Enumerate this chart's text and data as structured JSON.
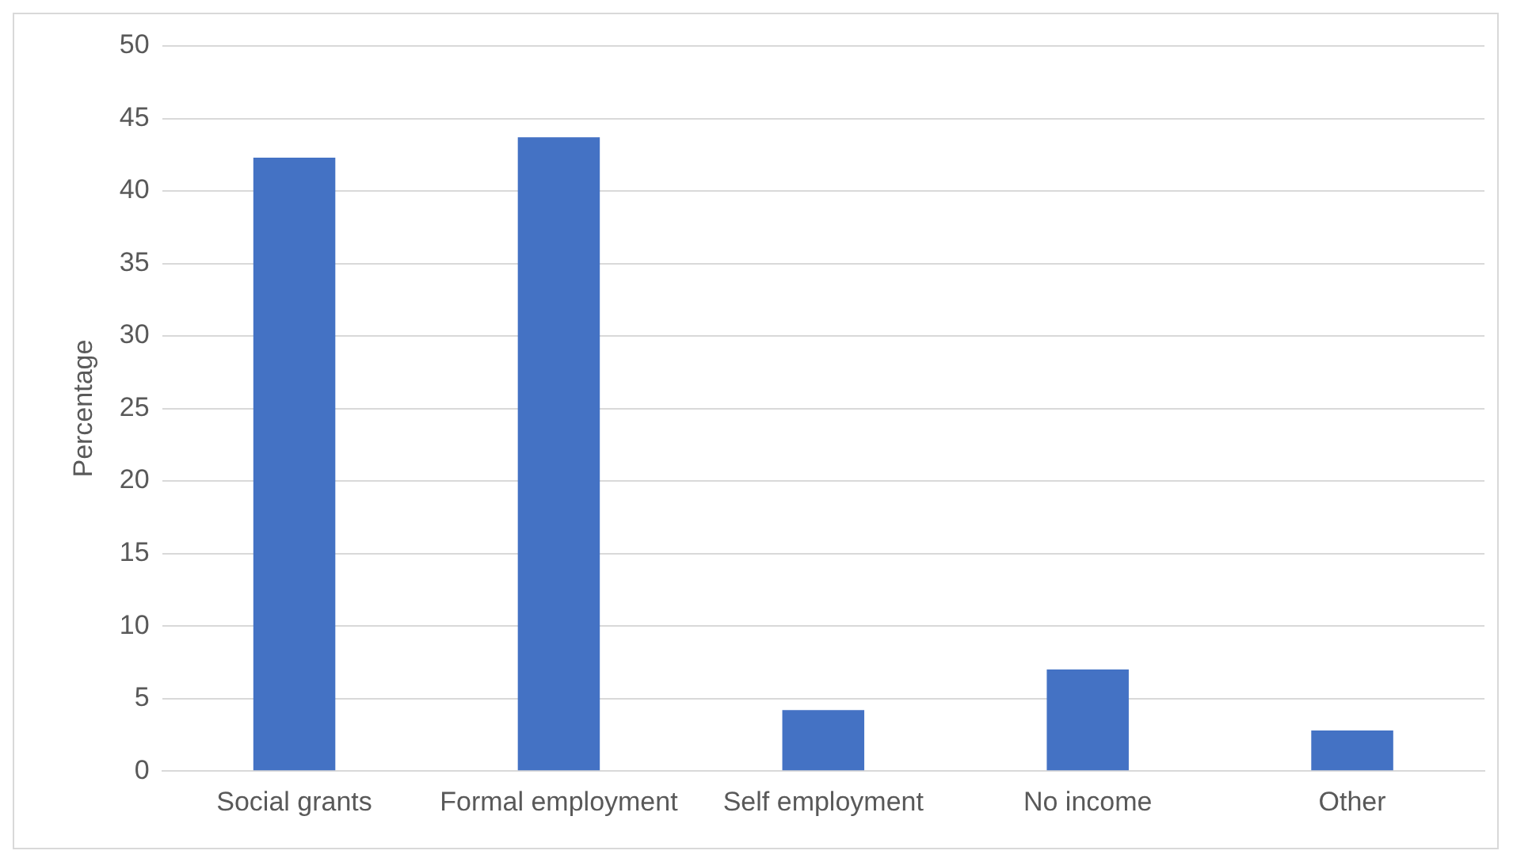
{
  "chart_data": {
    "type": "bar",
    "ylabel": "Percentage",
    "categories": [
      "Social grants",
      "Formal employment",
      "Self employment",
      "No income",
      "Other"
    ],
    "values": [
      42.3,
      43.7,
      4.2,
      7.0,
      2.8
    ],
    "color": "#4472c4",
    "ylim": [
      0,
      50
    ],
    "yticks": [
      0,
      5,
      10,
      15,
      20,
      25,
      30,
      35,
      40,
      45,
      50
    ],
    "grid": "y",
    "legend": false
  }
}
